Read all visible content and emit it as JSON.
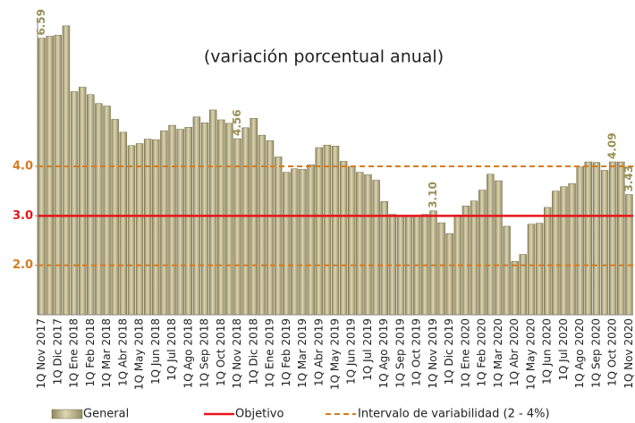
{
  "chart_data": {
    "type": "bar",
    "subtitle": "(variación porcentual anual)",
    "categories": [
      "1Q Nov 2017",
      null,
      "1Q Dic 2017",
      null,
      "1Q Ene 2018",
      null,
      "1Q Feb 2018",
      null,
      "1Q Mar 2018",
      null,
      "1Q Abr 2018",
      null,
      "1Q May 2018",
      null,
      "1Q Jun 2018",
      null,
      "1Q Jul 2018",
      null,
      "1Q Ago 2018",
      null,
      "1Q Sep 2018",
      null,
      "1Q Oct 2018",
      null,
      "1Q Nov 2018",
      null,
      "1Q Dic 2018",
      null,
      "1Q Ene 2019",
      null,
      "1Q Feb 2019",
      null,
      "1Q Mar 2019",
      null,
      "1Q Abr 2019",
      null,
      "1Q May 2019",
      null,
      "1Q Jun 2019",
      null,
      "1Q Jul 2019",
      null,
      "1Q Ago 2019",
      null,
      "1Q Sep 2019",
      null,
      "1Q Oct 2019",
      null,
      "1Q Nov 2019",
      null,
      "1Q Dic 2019",
      null,
      "1Q Ene 2020",
      null,
      "1Q Feb 2020",
      null,
      "1Q Mar 2020",
      null,
      "1Q Abr 2020",
      null,
      "1Q May 2020",
      null,
      "1Q Jun 2020",
      null,
      "1Q Jul 2020",
      null,
      "1Q Ago 2020",
      null,
      "1Q Sep 2020",
      null,
      "1Q Oct 2020",
      null,
      "1Q Nov 2020"
    ],
    "series": [
      {
        "name": "General",
        "color": "#c9c197",
        "values": [
          6.59,
          6.63,
          6.65,
          6.84,
          5.51,
          5.6,
          5.45,
          5.27,
          5.22,
          4.95,
          4.69,
          4.42,
          4.46,
          4.55,
          4.54,
          4.72,
          4.83,
          4.75,
          4.79,
          5.0,
          4.88,
          5.14,
          4.94,
          4.87,
          4.56,
          4.78,
          4.97,
          4.63,
          4.52,
          4.19,
          3.88,
          3.95,
          3.94,
          4.03,
          4.38,
          4.43,
          4.41,
          4.1,
          4.0,
          3.88,
          3.83,
          3.72,
          3.29,
          3.03,
          3.0,
          3.0,
          3.0,
          3.03,
          3.1,
          2.86,
          2.64,
          3.02,
          3.2,
          3.3,
          3.52,
          3.84,
          3.71,
          2.79,
          2.08,
          2.22,
          2.83,
          2.85,
          3.17,
          3.5,
          3.59,
          3.65,
          3.99,
          4.09,
          4.08,
          3.92,
          4.09,
          4.09,
          3.43
        ],
        "value_labels": [
          "6.59",
          null,
          null,
          null,
          null,
          null,
          null,
          null,
          null,
          null,
          null,
          null,
          null,
          null,
          null,
          null,
          null,
          null,
          null,
          null,
          null,
          null,
          null,
          null,
          "4.56",
          null,
          null,
          null,
          null,
          null,
          null,
          null,
          null,
          null,
          null,
          null,
          null,
          null,
          null,
          null,
          null,
          null,
          null,
          null,
          null,
          null,
          null,
          null,
          "3.10",
          null,
          null,
          null,
          null,
          null,
          null,
          null,
          null,
          null,
          null,
          null,
          null,
          null,
          null,
          null,
          null,
          null,
          null,
          null,
          null,
          null,
          "4.09",
          null,
          "3.43"
        ]
      }
    ],
    "objective": {
      "name": "Objetivo",
      "value": 3,
      "color": "#e8141b"
    },
    "interval": {
      "name": "Intervalo de variabilidad (2 - 4%)",
      "values": [
        2,
        4
      ],
      "color": "#d97a1e"
    },
    "ylim": [
      1,
      7
    ],
    "yticks": [
      {
        "value": 2,
        "label": "2.0"
      },
      {
        "value": 3,
        "label": "3.0"
      },
      {
        "value": 4,
        "label": "4.0"
      }
    ]
  }
}
